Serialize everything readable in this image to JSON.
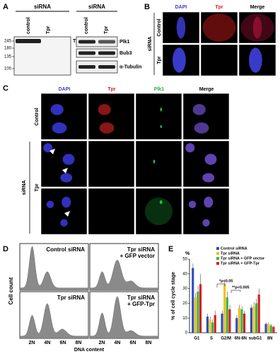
{
  "panel_a": {
    "letter": "A",
    "left_blot": {
      "header": "siRNA",
      "lanes": [
        "control",
        "Tpr"
      ],
      "markers": [
        "245",
        "180",
        "135",
        "100"
      ],
      "band_label": "Tpr"
    },
    "right_blot": {
      "header": "siRNA",
      "lanes": [
        "control",
        "Tpr"
      ],
      "band_labels": [
        "Plk1",
        "Bub3",
        "α-Tubulin"
      ]
    }
  },
  "panel_b": {
    "letter": "B",
    "columns": [
      "DAPI",
      "Tpr",
      "Merge"
    ],
    "rows": [
      "Control",
      "Tpr"
    ],
    "group": "siRNA"
  },
  "panel_c": {
    "letter": "C",
    "columns": [
      "DAPI",
      "Tpr",
      "Plk1",
      "Merge"
    ],
    "rows": [
      "Control",
      "Tpr"
    ],
    "group": "siRNA"
  },
  "panel_d": {
    "letter": "D",
    "y_label": "Cell count",
    "x_label": "DNA content",
    "plots": [
      [
        "Control siRNA"
      ],
      [
        "Tpr siRNA",
        "+ GFP vector"
      ],
      [
        "Tpr siRNA"
      ],
      [
        "Tpr siRNA",
        "+ GFP-Tpr"
      ]
    ],
    "x_ticks": [
      "2N",
      "4N",
      "6N",
      "8N"
    ]
  },
  "panel_e": {
    "letter": "E"
  },
  "chart_data": {
    "type": "bar",
    "y_label": "% of cell cycle stage",
    "unit": "%",
    "categories": [
      "G1",
      "S",
      "G2/M",
      "6N-8N",
      "subG1",
      "8N"
    ],
    "series": [
      {
        "name": "Control siRNA",
        "color": "#2f4fc4",
        "values": [
          44,
          11,
          13,
          10,
          17,
          6
        ],
        "errors": [
          3,
          2,
          2,
          2,
          2,
          1
        ]
      },
      {
        "name": "Tpr siRNA",
        "color": "#f0c020",
        "values": [
          24,
          9,
          33,
          17,
          18,
          6
        ],
        "errors": [
          3,
          2,
          3,
          2,
          3,
          1
        ]
      },
      {
        "name": "Tpr siRNA + GFP vector",
        "color": "#3cb44a",
        "values": [
          28,
          7,
          24,
          16,
          20,
          5
        ],
        "errors": [
          4,
          2,
          4,
          2,
          3,
          1
        ]
      },
      {
        "name": "Tpr siRNA + GFP-Tpr",
        "color": "#d62020",
        "values": [
          33,
          12,
          16,
          13,
          26,
          4
        ],
        "errors": [
          7,
          3,
          3,
          2,
          4,
          1
        ]
      }
    ],
    "ylim": [
      0,
      50
    ],
    "yticks": [
      0,
      10,
      20,
      30,
      40,
      50
    ],
    "annotations": [
      "*p<0.05",
      "**p<0.005"
    ]
  }
}
